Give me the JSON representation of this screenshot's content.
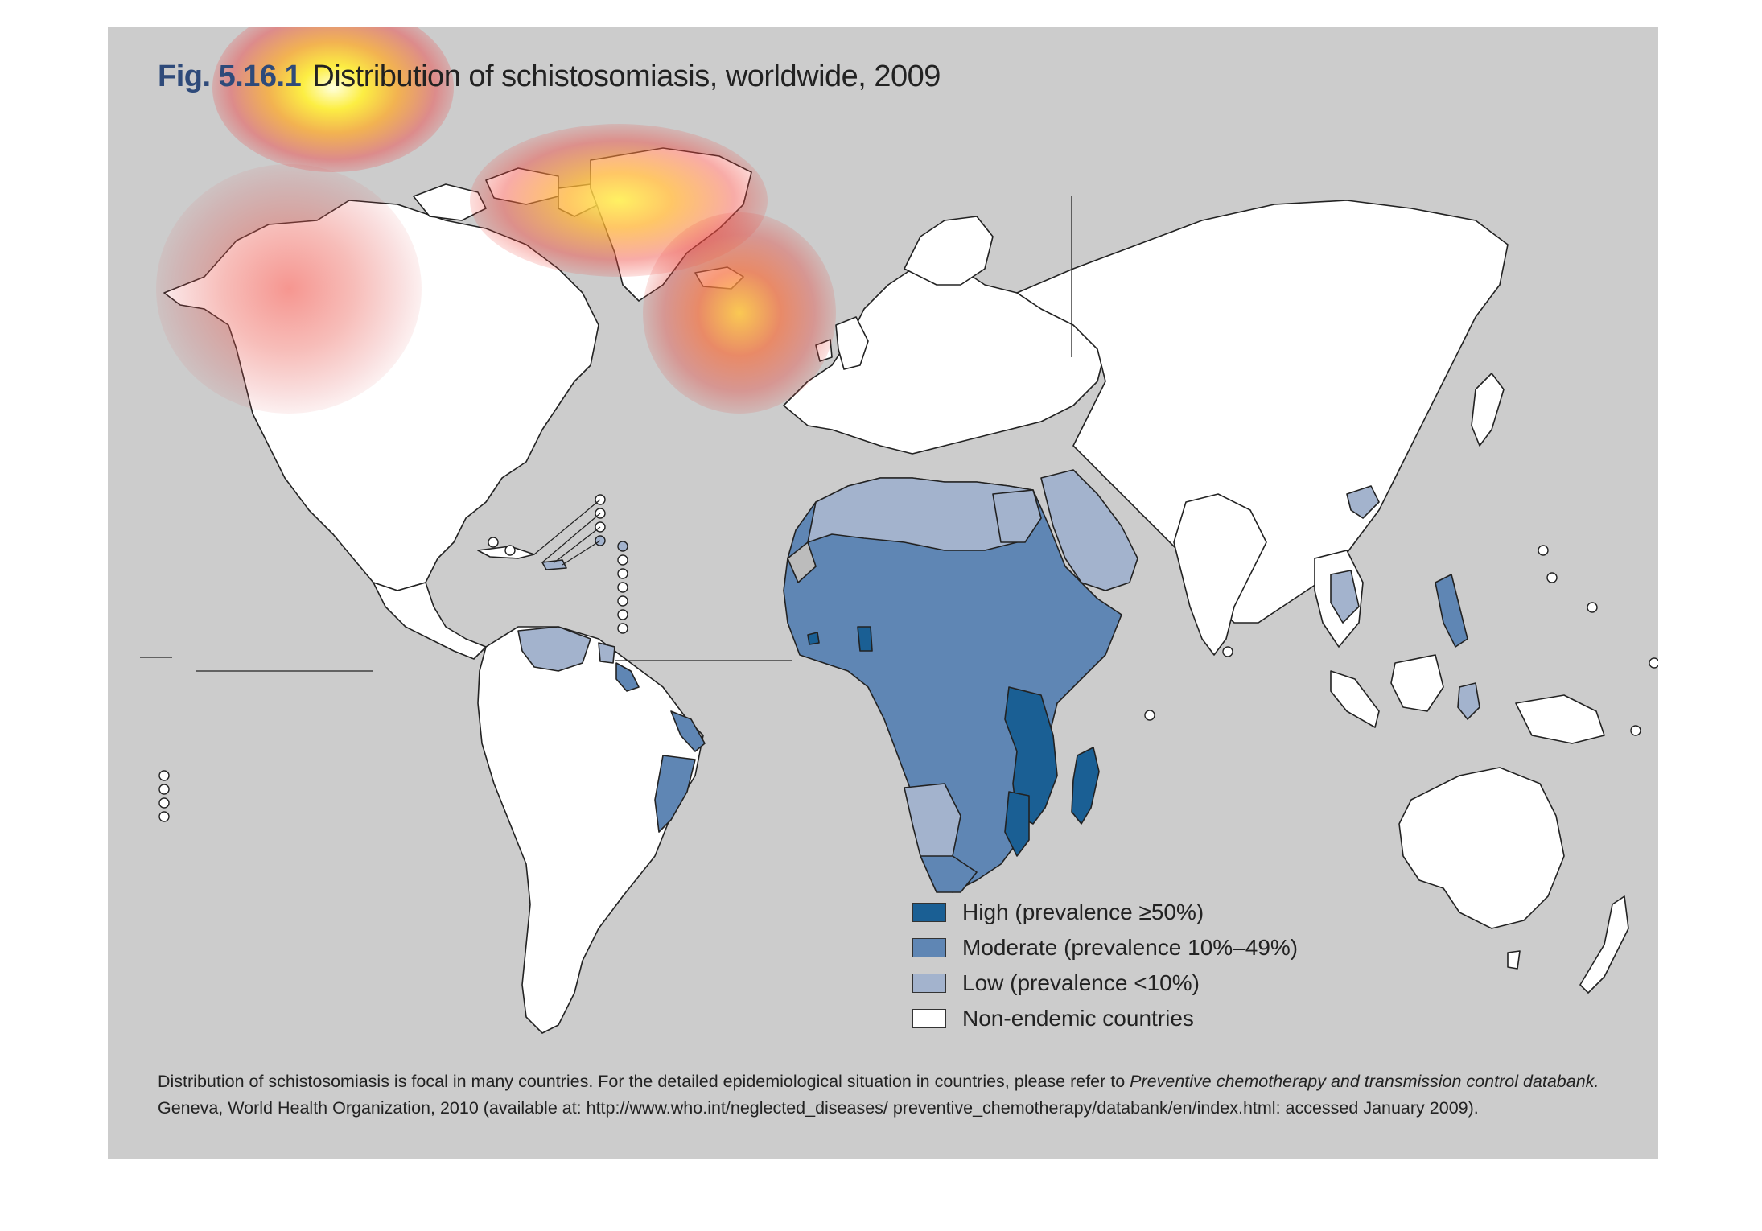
{
  "figure": {
    "number": "Fig. 5.16.1",
    "title": "Distribution of schistosomiasis, worldwide, 2009"
  },
  "legend": [
    {
      "label": "High (prevalence ≥50%)",
      "color": "#1a5f94"
    },
    {
      "label": "Moderate (prevalence 10%–49%)",
      "color": "#5f86b4"
    },
    {
      "label": "Low (prevalence <10%)",
      "color": "#a3b3cd"
    },
    {
      "label": "Non-endemic countries",
      "color": "#ffffff"
    }
  ],
  "footnote": {
    "line1_prefix": "Distribution of schistosomiasis is focal in many countries. For the detailed epidemiological situation in countries, please refer to ",
    "line1_italic": "Preventive chemotherapy and transmission control databank.",
    "line2": "Geneva, World Health Organization, 2010 (available at: http://www.who.int/neglected_diseases/ preventive_chemotherapy/databank/en/index.html: accessed January 2009)."
  },
  "colors": {
    "panel_background": "#cccccc",
    "land_outline": "#222222",
    "non_endemic": "#ffffff",
    "low": "#a3b3cd",
    "moderate": "#5f86b4",
    "high": "#1a5f94",
    "title_number": "#2e4a7a"
  },
  "overlay": {
    "type": "attention-heatmap",
    "hotspots": [
      "figure-title",
      "greenland",
      "iceland-uk",
      "alaska-canada-west"
    ]
  }
}
